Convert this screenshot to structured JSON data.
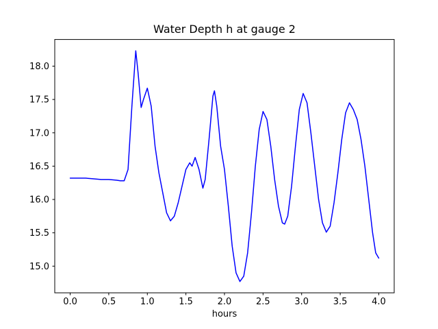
{
  "chart_data": {
    "type": "line",
    "title": "Water Depth h at gauge 2",
    "xlabel": "hours",
    "ylabel": "",
    "xlim": [
      -0.2,
      4.2
    ],
    "ylim": [
      14.6,
      18.4
    ],
    "xticks": [
      0.0,
      0.5,
      1.0,
      1.5,
      2.0,
      2.5,
      3.0,
      3.5,
      4.0
    ],
    "yticks": [
      15.0,
      15.5,
      16.0,
      16.5,
      17.0,
      17.5,
      18.0
    ],
    "grid": false,
    "legend": "none",
    "series": [
      {
        "name": "water-depth-gauge-2",
        "color": "#0000ff",
        "linewidth": 1.5,
        "x": [
          0.0,
          0.1,
          0.2,
          0.3,
          0.4,
          0.5,
          0.6,
          0.65,
          0.7,
          0.75,
          0.8,
          0.85,
          0.88,
          0.92,
          0.95,
          1.0,
          1.05,
          1.1,
          1.15,
          1.2,
          1.25,
          1.3,
          1.35,
          1.4,
          1.45,
          1.5,
          1.55,
          1.58,
          1.62,
          1.67,
          1.72,
          1.75,
          1.8,
          1.85,
          1.87,
          1.9,
          1.95,
          2.0,
          2.05,
          2.1,
          2.15,
          2.2,
          2.25,
          2.3,
          2.35,
          2.4,
          2.45,
          2.5,
          2.55,
          2.6,
          2.65,
          2.7,
          2.75,
          2.78,
          2.82,
          2.87,
          2.92,
          2.97,
          3.02,
          3.07,
          3.12,
          3.17,
          3.22,
          3.27,
          3.32,
          3.37,
          3.42,
          3.47,
          3.52,
          3.57,
          3.62,
          3.67,
          3.72,
          3.77,
          3.82,
          3.87,
          3.92,
          3.96,
          4.0
        ],
        "y": [
          16.32,
          16.32,
          16.32,
          16.31,
          16.3,
          16.3,
          16.29,
          16.28,
          16.28,
          16.45,
          17.4,
          18.23,
          17.9,
          17.38,
          17.5,
          17.67,
          17.4,
          16.8,
          16.4,
          16.1,
          15.8,
          15.68,
          15.75,
          15.95,
          16.2,
          16.45,
          16.55,
          16.5,
          16.63,
          16.45,
          16.17,
          16.3,
          16.9,
          17.55,
          17.63,
          17.4,
          16.8,
          16.45,
          15.9,
          15.3,
          14.9,
          14.77,
          14.85,
          15.2,
          15.8,
          16.5,
          17.05,
          17.32,
          17.2,
          16.8,
          16.3,
          15.9,
          15.65,
          15.63,
          15.75,
          16.2,
          16.8,
          17.35,
          17.59,
          17.45,
          17.0,
          16.5,
          16.0,
          15.65,
          15.51,
          15.6,
          15.95,
          16.4,
          16.9,
          17.3,
          17.45,
          17.35,
          17.2,
          16.9,
          16.5,
          16.0,
          15.5,
          15.2,
          15.12
        ]
      }
    ],
    "axes_color": "#000000",
    "background_color": "#ffffff",
    "tick_label_format": {
      "x_decimals": 1,
      "y_decimals": 1
    }
  }
}
